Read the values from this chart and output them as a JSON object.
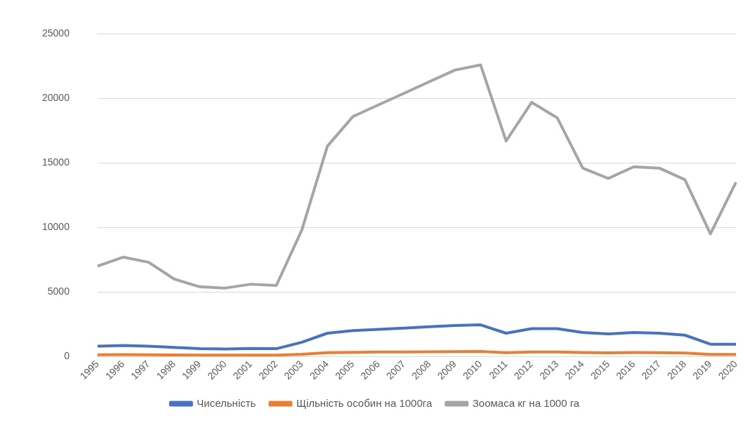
{
  "chart_data": {
    "type": "line",
    "categories": [
      "1995",
      "1996",
      "1997",
      "1998",
      "1999",
      "2000",
      "2001",
      "2002",
      "2003",
      "2004",
      "2005",
      "2006",
      "2007",
      "2008",
      "2009",
      "2010",
      "2011",
      "2012",
      "2013",
      "2014",
      "2015",
      "2016",
      "2017",
      "2018",
      "2019",
      "2020"
    ],
    "series": [
      {
        "name": "Чисельність",
        "color": "#4472c4",
        "values": [
          800,
          850,
          800,
          700,
          600,
          580,
          620,
          600,
          1100,
          1800,
          2000,
          2100,
          2200,
          2300,
          2400,
          2450,
          1800,
          2150,
          2150,
          1850,
          1750,
          1850,
          1800,
          1650,
          950,
          950
        ]
      },
      {
        "name": "Щільність особин на 1000га",
        "color": "#ed7d31",
        "values": [
          130,
          140,
          130,
          110,
          100,
          95,
          100,
          100,
          170,
          290,
          320,
          340,
          350,
          360,
          370,
          380,
          290,
          340,
          340,
          300,
          280,
          300,
          290,
          270,
          150,
          150
        ]
      },
      {
        "name": "Зоомаса кг на 1000 га",
        "color": "#a5a5a5",
        "values": [
          7000,
          7700,
          7300,
          6000,
          5400,
          5300,
          5600,
          5500,
          9800,
          16300,
          18600,
          19500,
          20400,
          21300,
          22200,
          22600,
          16700,
          19700,
          18500,
          14600,
          13800,
          14700,
          14600,
          13700,
          9500,
          13500
        ]
      }
    ],
    "ylim": [
      0,
      25000
    ],
    "yticks": [
      0,
      5000,
      10000,
      15000,
      20000,
      25000
    ],
    "grid": "y",
    "legend": "bottom",
    "marker": "none",
    "line_style": "solid"
  }
}
